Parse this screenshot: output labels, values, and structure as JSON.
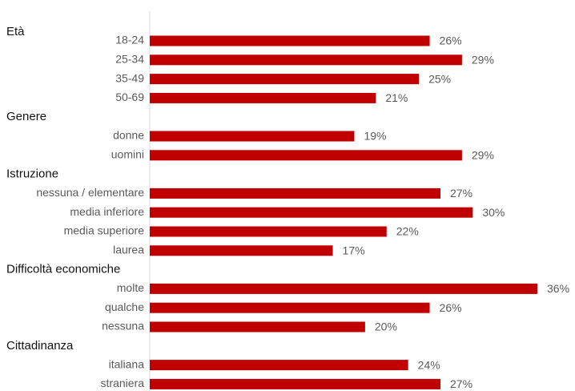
{
  "chart_data": {
    "type": "bar",
    "orientation": "horizontal",
    "color": "#c00000",
    "xlim": [
      0,
      36
    ],
    "groups": [
      {
        "name": "Età",
        "categories": [
          "18-24",
          "25-34",
          "35-49",
          "50-69"
        ],
        "values": [
          26,
          29,
          25,
          21
        ],
        "value_labels": [
          "26%",
          "29%",
          "25%",
          "21%"
        ]
      },
      {
        "name": "Genere",
        "categories": [
          "donne",
          "uomini"
        ],
        "values": [
          19,
          29
        ],
        "value_labels": [
          "19%",
          "29%"
        ]
      },
      {
        "name": "Istruzione",
        "categories": [
          "nessuna / elementare",
          "media inferiore",
          "media superiore",
          "laurea"
        ],
        "values": [
          27,
          30,
          22,
          17
        ],
        "value_labels": [
          "27%",
          "30%",
          "22%",
          "17%"
        ]
      },
      {
        "name": "Difficoltà economiche",
        "categories": [
          "molte",
          "qualche",
          "nessuna"
        ],
        "values": [
          36,
          26,
          20
        ],
        "value_labels": [
          "36%",
          "26%",
          "20%"
        ]
      },
      {
        "name": "Cittadinanza",
        "categories": [
          "italiana",
          "straniera"
        ],
        "values": [
          24,
          27
        ],
        "value_labels": [
          "24%",
          "27%"
        ]
      }
    ]
  }
}
